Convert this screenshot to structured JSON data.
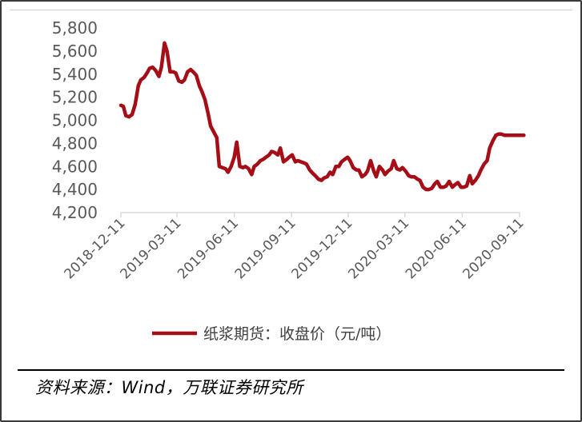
{
  "source_note": "资料来源：Wind，万联证券研究所",
  "colors": {
    "series": "#a50d17",
    "axis": "#d9d9d9",
    "tick_text": "#595959"
  },
  "chart_data": {
    "type": "line",
    "title": "",
    "xlabel": "",
    "ylabel": "",
    "ylim": [
      4200,
      5800
    ],
    "yticks": [
      4200,
      4400,
      4600,
      4800,
      5000,
      5200,
      5400,
      5600,
      5800
    ],
    "ytick_labels": [
      "4,200",
      "4,400",
      "4,600",
      "4,800",
      "5,000",
      "5,200",
      "5,400",
      "5,600",
      "5,800"
    ],
    "xlim": [
      "2018-12-11",
      "2020-09-11"
    ],
    "xticks": [
      "2018-12-11",
      "2019-03-11",
      "2019-06-11",
      "2019-09-11",
      "2019-12-11",
      "2020-03-11",
      "2020-06-11",
      "2020-09-11"
    ],
    "grid": false,
    "legend": "bottom",
    "series": [
      {
        "name": "纸浆期货：收盘价（元/吨）",
        "color": "#a50d17",
        "x": [
          "2018-12-11",
          "2018-12-15",
          "2018-12-19",
          "2018-12-24",
          "2018-12-29",
          "2019-01-03",
          "2019-01-08",
          "2019-01-12",
          "2019-01-17",
          "2019-01-22",
          "2019-01-26",
          "2019-01-31",
          "2019-02-05",
          "2019-02-10",
          "2019-02-14",
          "2019-02-19",
          "2019-02-23",
          "2019-02-28",
          "2019-03-05",
          "2019-03-09",
          "2019-03-14",
          "2019-03-19",
          "2019-03-23",
          "2019-03-28",
          "2019-04-02",
          "2019-04-06",
          "2019-04-11",
          "2019-04-16",
          "2019-04-20",
          "2019-04-25",
          "2019-04-30",
          "2019-05-04",
          "2019-05-09",
          "2019-05-14",
          "2019-05-18",
          "2019-05-23",
          "2019-05-28",
          "2019-06-01",
          "2019-06-06",
          "2019-06-11",
          "2019-06-15",
          "2019-06-20",
          "2019-06-25",
          "2019-06-29",
          "2019-07-04",
          "2019-07-09",
          "2019-07-13",
          "2019-07-18",
          "2019-07-23",
          "2019-07-27",
          "2019-08-01",
          "2019-08-06",
          "2019-08-10",
          "2019-08-15",
          "2019-08-20",
          "2019-08-24",
          "2019-08-29",
          "2019-09-03",
          "2019-09-07",
          "2019-09-12",
          "2019-09-17",
          "2019-09-21",
          "2019-09-26",
          "2019-10-01",
          "2019-10-05",
          "2019-10-10",
          "2019-10-15",
          "2019-10-19",
          "2019-10-24",
          "2019-10-29",
          "2019-11-02",
          "2019-11-07",
          "2019-11-12",
          "2019-11-16",
          "2019-11-21",
          "2019-11-26",
          "2019-11-30",
          "2019-12-05",
          "2019-12-10",
          "2019-12-14",
          "2019-12-19",
          "2019-12-24",
          "2019-12-28",
          "2020-01-02",
          "2020-01-07",
          "2020-01-11",
          "2020-01-16",
          "2020-01-21",
          "2020-01-25",
          "2020-01-30",
          "2020-02-04",
          "2020-02-08",
          "2020-02-13",
          "2020-02-18",
          "2020-02-22",
          "2020-02-27",
          "2020-03-03",
          "2020-03-07",
          "2020-03-12",
          "2020-03-17",
          "2020-03-21",
          "2020-03-26",
          "2020-03-31",
          "2020-04-04",
          "2020-04-09",
          "2020-04-14",
          "2020-04-18",
          "2020-04-23",
          "2020-04-28",
          "2020-05-02",
          "2020-05-07",
          "2020-05-12",
          "2020-05-16",
          "2020-05-21",
          "2020-05-26",
          "2020-05-30",
          "2020-06-04",
          "2020-06-09",
          "2020-06-13",
          "2020-06-18",
          "2020-06-23",
          "2020-06-27",
          "2020-07-02",
          "2020-07-07",
          "2020-07-11",
          "2020-07-16",
          "2020-07-21",
          "2020-07-25",
          "2020-07-30",
          "2020-08-04",
          "2020-08-08",
          "2020-08-13",
          "2020-08-18",
          "2020-08-22",
          "2020-08-27",
          "2020-09-01",
          "2020-09-05",
          "2020-09-10",
          "2020-09-14",
          "2020-09-18"
        ],
        "values": [
          5130,
          5120,
          5040,
          5030,
          5050,
          5140,
          5300,
          5350,
          5370,
          5410,
          5450,
          5460,
          5430,
          5380,
          5460,
          5670,
          5600,
          5420,
          5420,
          5410,
          5340,
          5330,
          5350,
          5420,
          5440,
          5420,
          5390,
          5300,
          5250,
          5180,
          5060,
          4950,
          4900,
          4850,
          4600,
          4590,
          4580,
          4550,
          4600,
          4680,
          4810,
          4600,
          4590,
          4600,
          4580,
          4530,
          4600,
          4620,
          4650,
          4660,
          4680,
          4700,
          4730,
          4720,
          4700,
          4760,
          4640,
          4660,
          4680,
          4700,
          4640,
          4650,
          4640,
          4630,
          4620,
          4570,
          4540,
          4520,
          4490,
          4480,
          4500,
          4510,
          4550,
          4530,
          4600,
          4600,
          4640,
          4660,
          4680,
          4650,
          4590,
          4570,
          4570,
          4510,
          4530,
          4560,
          4650,
          4560,
          4510,
          4600,
          4570,
          4530,
          4560,
          4580,
          4650,
          4580,
          4570,
          4590,
          4560,
          4520,
          4510,
          4510,
          4490,
          4480,
          4420,
          4400,
          4400,
          4410,
          4450,
          4470,
          4420,
          4420,
          4430,
          4470,
          4420,
          4440,
          4460,
          4420,
          4420,
          4430,
          4520,
          4450,
          4480,
          4520,
          4570,
          4620,
          4650,
          4760,
          4820,
          4870,
          4880,
          4880,
          4870,
          4870,
          4870,
          4870,
          4870,
          4870,
          4870,
          4870
        ]
      }
    ]
  }
}
